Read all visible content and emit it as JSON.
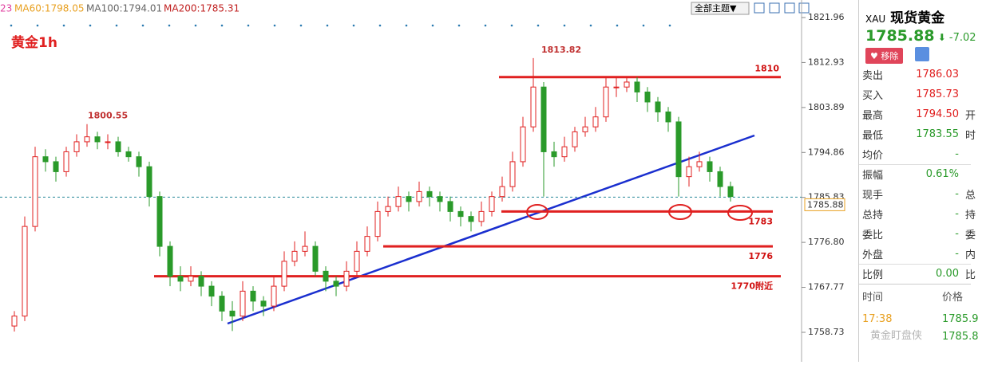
{
  "header": {
    "legend": [
      "23",
      "MA60:1798.05",
      "MA100:1794.01",
      "MA200:1785.31"
    ],
    "theme_button": "全部主题▼"
  },
  "chart": {
    "type": "candlestick",
    "label": "黄金1h",
    "ylim": [
      1755.05,
      1825.48
    ],
    "yticks": [
      1821.96,
      1812.93,
      1803.89,
      1794.86,
      1785.83,
      1776.8,
      {
        "value": 1776.8,
        "label": "1776.80"
      },
      1767.77,
      1758.73
    ],
    "last_price": 1785.88,
    "high_labels": [
      1813.82,
      1800.55
    ],
    "levels": [
      1810,
      1783,
      1776,
      {
        "value": 1770,
        "label": "1770附近"
      }
    ],
    "up_color": "#e02020",
    "down_color": "#2a9a2a",
    "candles": [
      [
        1760,
        1763,
        1758.9,
        1762
      ],
      [
        1762,
        1782,
        1761,
        1780
      ],
      [
        1780,
        1796,
        1779,
        1794
      ],
      [
        1794,
        1795.5,
        1791,
        1793
      ],
      [
        1793,
        1794,
        1789,
        1791
      ],
      [
        1791,
        1796,
        1790,
        1795
      ],
      [
        1795,
        1798.5,
        1794,
        1797
      ],
      [
        1797,
        1800.55,
        1796,
        1798
      ],
      [
        1798,
        1799,
        1795.5,
        1797
      ],
      [
        1797,
        1798.5,
        1795.5,
        1797
      ],
      [
        1797,
        1798,
        1794,
        1795
      ],
      [
        1795,
        1796,
        1793,
        1794
      ],
      [
        1794,
        1795,
        1790,
        1792
      ],
      [
        1792,
        1793,
        1784,
        1786
      ],
      [
        1786,
        1787,
        1774,
        1776
      ],
      [
        1776,
        1777,
        1768,
        1770
      ],
      [
        1770,
        1772,
        1767,
        1769
      ],
      [
        1769,
        1772,
        1768,
        1770
      ],
      [
        1770,
        1771,
        1766,
        1768
      ],
      [
        1768,
        1769,
        1764,
        1766
      ],
      [
        1766,
        1767,
        1761,
        1763
      ],
      [
        1763,
        1765,
        1759,
        1762
      ],
      [
        1762,
        1769,
        1761,
        1767
      ],
      [
        1767,
        1768,
        1763,
        1765
      ],
      [
        1765,
        1766,
        1762,
        1764
      ],
      [
        1764,
        1770,
        1763,
        1768
      ],
      [
        1768,
        1775,
        1767,
        1773
      ],
      [
        1773,
        1777,
        1772,
        1775
      ],
      [
        1775,
        1779,
        1774,
        1776
      ],
      [
        1776,
        1777,
        1770,
        1771
      ],
      [
        1771,
        1772,
        1767,
        1769
      ],
      [
        1769,
        1770,
        1766,
        1768
      ],
      [
        1768,
        1773,
        1767,
        1771
      ],
      [
        1771,
        1777,
        1770,
        1775
      ],
      [
        1775,
        1780,
        1774,
        1778
      ],
      [
        1778,
        1785,
        1777,
        1783
      ],
      [
        1783,
        1786,
        1782,
        1784
      ],
      [
        1784,
        1788,
        1783,
        1786
      ],
      [
        1786,
        1787,
        1783,
        1785
      ],
      [
        1785,
        1789,
        1784,
        1787
      ],
      [
        1787,
        1788,
        1784,
        1786
      ],
      [
        1786,
        1787,
        1783,
        1785
      ],
      [
        1785,
        1786,
        1781,
        1783
      ],
      [
        1783,
        1784,
        1780,
        1782
      ],
      [
        1782,
        1783,
        1779,
        1781
      ],
      [
        1781,
        1785,
        1780,
        1783
      ],
      [
        1783,
        1787,
        1782,
        1786
      ],
      [
        1786,
        1790,
        1785,
        1788
      ],
      [
        1788,
        1795,
        1787,
        1793
      ],
      [
        1793,
        1802,
        1792,
        1800
      ],
      [
        1800,
        1813.82,
        1799,
        1808
      ],
      [
        1808,
        1809,
        1786,
        1795
      ],
      [
        1795,
        1797,
        1792,
        1794
      ],
      [
        1794,
        1798,
        1793,
        1796
      ],
      [
        1796,
        1800,
        1795,
        1799
      ],
      [
        1799,
        1802,
        1798,
        1800
      ],
      [
        1800,
        1804,
        1799,
        1802
      ],
      [
        1802,
        1810,
        1801,
        1808
      ],
      [
        1808,
        1810,
        1806,
        1808
      ],
      [
        1808,
        1810,
        1807,
        1809
      ],
      [
        1809,
        1810,
        1805,
        1807
      ],
      [
        1807,
        1808,
        1803,
        1805
      ],
      [
        1805,
        1806,
        1801,
        1803
      ],
      [
        1803,
        1804,
        1799,
        1801
      ],
      [
        1801,
        1802,
        1786,
        1790
      ],
      [
        1790,
        1794,
        1788,
        1792
      ],
      [
        1792,
        1795,
        1791,
        1793
      ],
      [
        1793,
        1794,
        1789,
        1791
      ],
      [
        1791,
        1792,
        1786,
        1788
      ],
      [
        1788,
        1789,
        1785,
        1786
      ]
    ]
  },
  "panel": {
    "symbol": "XAU",
    "name": "现货黄金",
    "price": 1785.88,
    "change": -7.02,
    "remove": "移除",
    "rows": [
      [
        "卖出",
        1786.03,
        ""
      ],
      [
        "买入",
        1785.73,
        ""
      ],
      [
        "最高",
        "1794.50",
        "开"
      ],
      [
        "最低",
        1783.55,
        "时"
      ],
      [
        "均价",
        "-",
        ""
      ],
      [
        "振幅",
        "0.61%",
        ""
      ],
      [
        "现手",
        "-",
        "总"
      ],
      [
        "总持",
        "-",
        "持"
      ],
      [
        "委比",
        "-",
        "委"
      ],
      [
        "外盘",
        "-",
        "内"
      ],
      [
        "比例",
        "0.00",
        "比"
      ]
    ],
    "ticks_header": [
      "时间",
      "价格"
    ],
    "ticks": [
      [
        "17:38",
        "1785.9"
      ],
      [
        "",
        "1785.8"
      ]
    ],
    "watermark": "黄金盯盘侠"
  }
}
